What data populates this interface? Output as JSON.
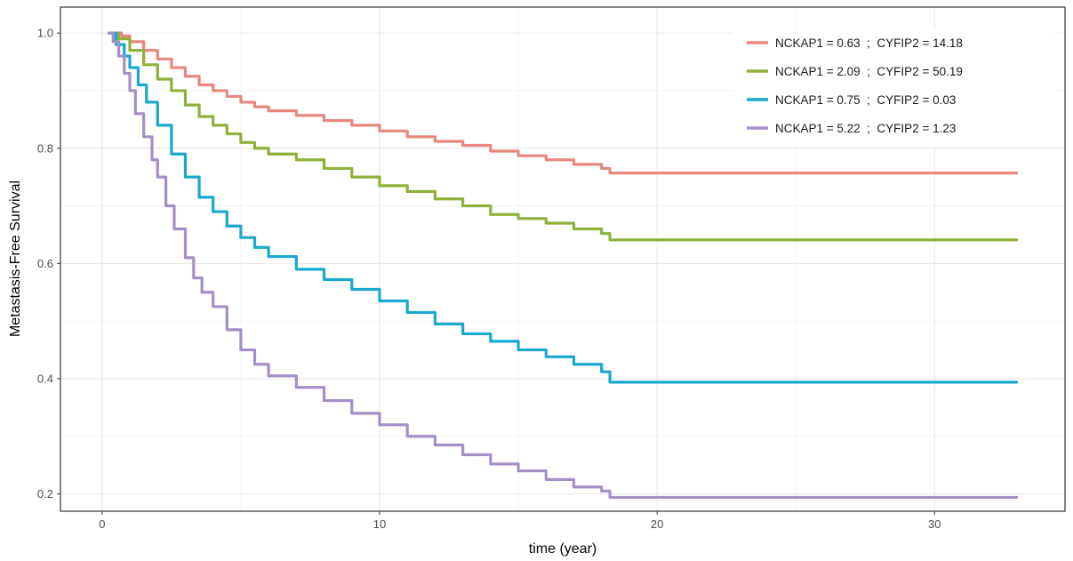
{
  "chart_data": {
    "type": "line",
    "step": true,
    "xlabel": "time (year)",
    "ylabel": "Metastasis-Free Survival",
    "xlim": [
      -1.5,
      34.7
    ],
    "ylim": [
      0.17,
      1.045
    ],
    "x_ticks": [
      0,
      10,
      20,
      30
    ],
    "x_minor_ticks": [
      5,
      15,
      25
    ],
    "y_ticks": [
      0.2,
      0.4,
      0.6,
      0.8,
      1.0
    ],
    "y_minor_ticks": [
      0.3,
      0.5,
      0.7,
      0.9
    ],
    "grid": true,
    "legend_position": "top-right",
    "series": [
      {
        "name": "NCKAP1 = 0.63 ; CYFIP2 = 14.18",
        "color": "#E8877F",
        "x": [
          0.2,
          0.7,
          1.0,
          1.5,
          2.0,
          2.5,
          3.0,
          3.5,
          4.0,
          4.5,
          5.0,
          5.5,
          6.0,
          7.0,
          8.0,
          9.0,
          10.0,
          11.0,
          12.0,
          13.0,
          14.0,
          15.0,
          16.0,
          17.0,
          18.0,
          18.3,
          33.0
        ],
        "values": [
          1.0,
          0.995,
          0.985,
          0.97,
          0.955,
          0.94,
          0.925,
          0.91,
          0.9,
          0.89,
          0.88,
          0.872,
          0.865,
          0.857,
          0.848,
          0.84,
          0.83,
          0.82,
          0.812,
          0.805,
          0.795,
          0.787,
          0.78,
          0.772,
          0.765,
          0.757,
          0.757
        ]
      },
      {
        "name": "NCKAP1 = 2.09 ; CYFIP2 = 50.19",
        "color": "#8DB13A",
        "x": [
          0.2,
          0.6,
          1.0,
          1.5,
          2.0,
          2.5,
          3.0,
          3.5,
          4.0,
          4.5,
          5.0,
          5.5,
          6.0,
          7.0,
          8.0,
          9.0,
          10.0,
          11.0,
          12.0,
          13.0,
          14.0,
          15.0,
          16.0,
          17.0,
          18.0,
          18.3,
          33.0
        ],
        "values": [
          1.0,
          0.99,
          0.97,
          0.945,
          0.92,
          0.9,
          0.875,
          0.855,
          0.84,
          0.825,
          0.81,
          0.8,
          0.79,
          0.78,
          0.765,
          0.75,
          0.735,
          0.725,
          0.712,
          0.7,
          0.685,
          0.678,
          0.67,
          0.66,
          0.652,
          0.641,
          0.641
        ]
      },
      {
        "name": "NCKAP1 = 0.75 ; CYFIP2 = 0.03",
        "color": "#1BA8CE",
        "x": [
          0.2,
          0.5,
          0.8,
          1.0,
          1.3,
          1.6,
          2.0,
          2.5,
          3.0,
          3.5,
          4.0,
          4.5,
          5.0,
          5.5,
          6.0,
          7.0,
          8.0,
          9.0,
          10.0,
          11.0,
          12.0,
          13.0,
          14.0,
          15.0,
          16.0,
          17.0,
          18.0,
          18.3,
          33.0
        ],
        "values": [
          1.0,
          0.98,
          0.96,
          0.94,
          0.91,
          0.88,
          0.84,
          0.79,
          0.75,
          0.715,
          0.69,
          0.665,
          0.645,
          0.628,
          0.612,
          0.59,
          0.572,
          0.555,
          0.535,
          0.515,
          0.495,
          0.478,
          0.465,
          0.45,
          0.438,
          0.425,
          0.412,
          0.394,
          0.394
        ]
      },
      {
        "name": "NCKAP1 = 5.22 ; CYFIP2 = 1.23",
        "color": "#A58FC8",
        "x": [
          0.2,
          0.4,
          0.6,
          0.8,
          1.0,
          1.2,
          1.5,
          1.8,
          2.0,
          2.3,
          2.6,
          3.0,
          3.3,
          3.6,
          4.0,
          4.5,
          5.0,
          5.5,
          6.0,
          7.0,
          8.0,
          9.0,
          10.0,
          11.0,
          12.0,
          13.0,
          14.0,
          15.0,
          16.0,
          17.0,
          18.0,
          18.3,
          33.0
        ],
        "values": [
          1.0,
          0.985,
          0.96,
          0.93,
          0.9,
          0.86,
          0.82,
          0.78,
          0.75,
          0.7,
          0.66,
          0.61,
          0.575,
          0.55,
          0.525,
          0.485,
          0.45,
          0.425,
          0.405,
          0.385,
          0.362,
          0.34,
          0.32,
          0.3,
          0.285,
          0.268,
          0.252,
          0.24,
          0.225,
          0.212,
          0.205,
          0.194,
          0.194
        ]
      }
    ]
  }
}
